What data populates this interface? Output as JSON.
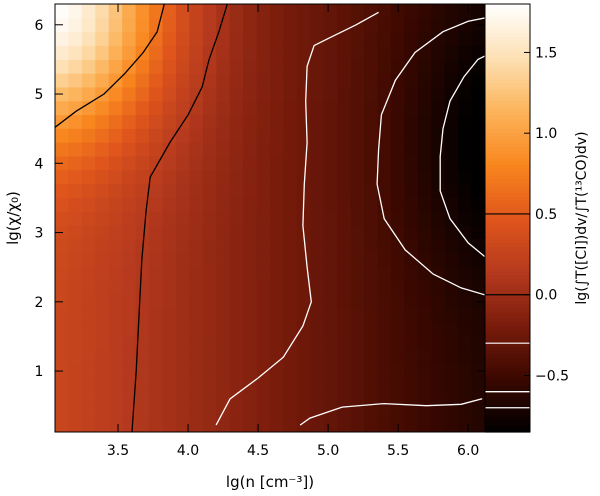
{
  "chart_data": {
    "type": "heatmap",
    "title": "",
    "xlabel": "lg(n [cm⁻³])",
    "ylabel": "lg(χ/χ₀)",
    "colorbar_label": "lg(∫T([CI])dv/∫T(¹³CO)dv)",
    "xlim": [
      3.05,
      6.12
    ],
    "ylim": [
      0.12,
      6.3
    ],
    "clim": [
      -0.85,
      1.8
    ],
    "x_ticks": [
      3.5,
      4.0,
      4.5,
      5.0,
      5.5,
      6.0
    ],
    "x_tick_labels": [
      "3.5",
      "4.0",
      "4.5",
      "5.0",
      "5.5",
      "6.0"
    ],
    "y_ticks": [
      1,
      2,
      3,
      4,
      5,
      6
    ],
    "y_tick_labels": [
      "1",
      "2",
      "3",
      "4",
      "5",
      "6"
    ],
    "colorbar_ticks": [
      -0.5,
      0.0,
      0.5,
      1.0,
      1.5
    ],
    "colorbar_tick_labels": [
      "−0.5",
      "0.0",
      "0.5",
      "1.0",
      "1.5"
    ],
    "colormap": [
      "#000000",
      "#3a0800",
      "#7a1c0c",
      "#b63a1e",
      "#e0561c",
      "#f9861e",
      "#fcb45a",
      "#fde0b4",
      "#ffffff"
    ],
    "grid": false,
    "contours": [
      {
        "level": 0.5,
        "color": "#000000",
        "points": [
          [
            3.05,
            4.52
          ],
          [
            3.2,
            4.75
          ],
          [
            3.4,
            5.0
          ],
          [
            3.55,
            5.3
          ],
          [
            3.68,
            5.6
          ],
          [
            3.78,
            5.9
          ],
          [
            3.83,
            6.3
          ]
        ]
      },
      {
        "level": 0.0,
        "color": "#000000",
        "points": [
          [
            3.6,
            0.12
          ],
          [
            3.63,
            1.0
          ],
          [
            3.65,
            1.8
          ],
          [
            3.67,
            2.6
          ],
          [
            3.7,
            3.3
          ],
          [
            3.73,
            3.8
          ],
          [
            3.87,
            4.3
          ],
          [
            4.0,
            4.7
          ],
          [
            4.1,
            5.1
          ],
          [
            4.15,
            5.5
          ],
          [
            4.22,
            5.9
          ],
          [
            4.28,
            6.3
          ]
        ]
      },
      {
        "level": -0.3,
        "color": "#ffffff",
        "points": [
          [
            4.2,
            0.22
          ],
          [
            4.3,
            0.6
          ],
          [
            4.5,
            0.9
          ],
          [
            4.68,
            1.2
          ],
          [
            4.82,
            1.65
          ],
          [
            4.88,
            2.0
          ],
          [
            4.85,
            2.5
          ],
          [
            4.82,
            3.1
          ],
          [
            4.83,
            3.7
          ],
          [
            4.85,
            4.3
          ],
          [
            4.84,
            4.9
          ],
          [
            4.85,
            5.4
          ],
          [
            4.9,
            5.7
          ],
          [
            5.0,
            5.8
          ],
          [
            5.2,
            6.0
          ],
          [
            5.36,
            6.18
          ]
        ]
      },
      {
        "level": -0.6,
        "color": "#ffffff",
        "points": [
          [
            6.12,
            2.1
          ],
          [
            5.95,
            2.2
          ],
          [
            5.75,
            2.4
          ],
          [
            5.55,
            2.75
          ],
          [
            5.4,
            3.2
          ],
          [
            5.35,
            3.7
          ],
          [
            5.36,
            4.2
          ],
          [
            5.38,
            4.7
          ],
          [
            5.48,
            5.2
          ],
          [
            5.62,
            5.6
          ],
          [
            5.82,
            5.9
          ],
          [
            6.0,
            6.05
          ],
          [
            6.12,
            6.1
          ]
        ]
      },
      {
        "level": -0.7,
        "color": "#ffffff",
        "points": [
          [
            6.12,
            2.65
          ],
          [
            6.0,
            2.85
          ],
          [
            5.87,
            3.2
          ],
          [
            5.8,
            3.6
          ],
          [
            5.8,
            4.1
          ],
          [
            5.82,
            4.5
          ],
          [
            5.87,
            4.9
          ],
          [
            5.97,
            5.25
          ],
          [
            6.07,
            5.5
          ],
          [
            6.12,
            5.55
          ]
        ]
      },
      {
        "level": -0.6,
        "color": "#ffffff",
        "points": [
          [
            4.8,
            0.22
          ],
          [
            4.87,
            0.32
          ],
          [
            5.1,
            0.48
          ],
          [
            5.4,
            0.53
          ],
          [
            5.7,
            0.5
          ],
          [
            5.95,
            0.52
          ],
          [
            6.1,
            0.6
          ]
        ]
      }
    ],
    "field_description": "ratio highest at low density and high field (top-left), decreasing toward high density; minimum near n=6.1, chi=4.3"
  }
}
